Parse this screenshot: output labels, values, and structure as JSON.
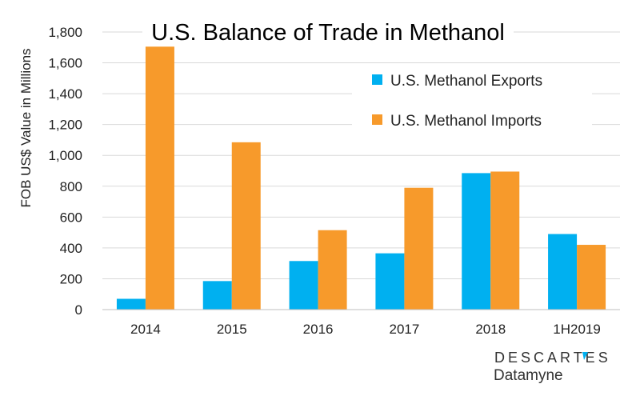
{
  "chart_data": {
    "type": "bar",
    "title": "U.S. Balance of Trade in Methanol",
    "xlabel": "",
    "ylabel": "FOB US$ Value in Millions",
    "categories": [
      "2014",
      "2015",
      "2016",
      "2017",
      "2018",
      "1H2019"
    ],
    "series": [
      {
        "name": "U.S. Methanol Exports",
        "values": [
          70,
          185,
          315,
          365,
          885,
          490
        ],
        "color": "#00B0F0"
      },
      {
        "name": "U.S. Methanol Imports",
        "values": [
          1705,
          1085,
          515,
          790,
          895,
          420
        ],
        "color": "#F79A2B"
      }
    ],
    "ylim": [
      0,
      1800
    ],
    "yticks": [
      0,
      200,
      400,
      600,
      800,
      1000,
      1200,
      1400,
      1600,
      1800
    ],
    "ytick_labels": [
      "0",
      "200",
      "400",
      "600",
      "800",
      "1,000",
      "1,200",
      "1,400",
      "1,600",
      "1,800"
    ],
    "grid": true,
    "legend_position": "top-right"
  },
  "branding": {
    "logo_line1": "DESCARTES",
    "logo_line2": "Datamyne",
    "accent_color": "#00B0F0"
  }
}
